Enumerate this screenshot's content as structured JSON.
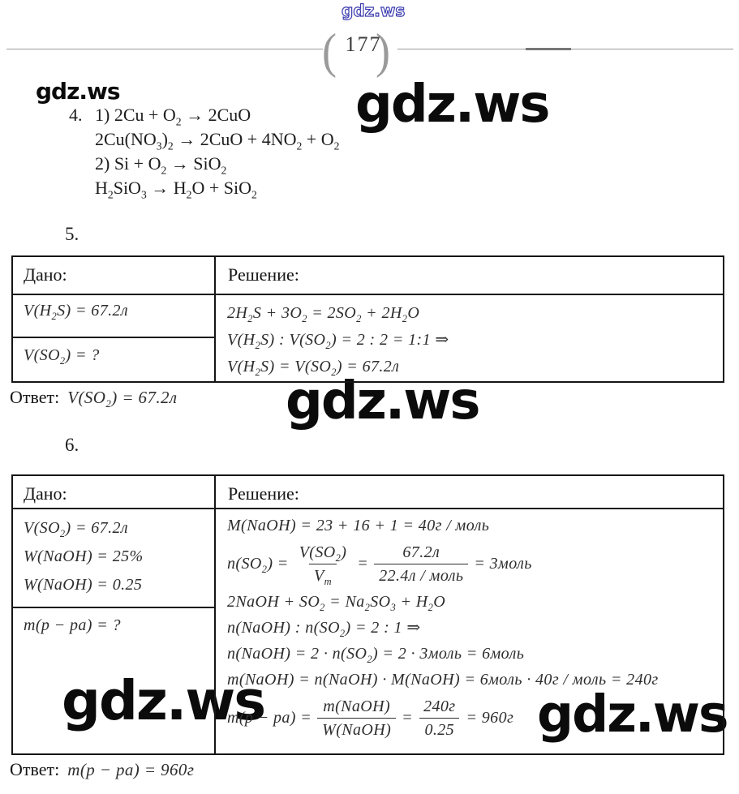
{
  "page": {
    "number": "177"
  },
  "watermarks": {
    "tiny_top": "gdz.ws",
    "top_left": "gdz.ws",
    "top_right": "gdz.ws",
    "middle": "gdz.ws",
    "bottom_left": "gdz.ws",
    "bottom_right": "gdz.ws"
  },
  "colors": {
    "table_border": "#151515",
    "header_rule": "#9a9a9a",
    "watermark": "#0b0b0b",
    "tiny_watermark_outline": "#3b3bb0"
  },
  "item4": {
    "number": "4.",
    "equations": [
      "1) 2Cu + O₂ → 2CuO",
      "2Cu(NO₃)₂ → 2CuO + 4NO₂ + O₂",
      "2) Si + O₂ → SiO₂",
      "H₂SiO₃ → H₂O + SiO₂"
    ]
  },
  "item5": {
    "number": "5.",
    "table": {
      "given_header": "Дано:",
      "solution_header": "Решение:",
      "given": [
        "V(H₂S) = 67.2л"
      ],
      "find": "V(SO₂) = ?",
      "solution": [
        "2H₂S + 3O₂ = 2SO₂ + 2H₂O",
        "V(H₂S) : V(SO₂) = 2 : 2 = 1:1 ⇒",
        "V(H₂S) = V(SO₂) = 67.2л"
      ]
    },
    "answer_label": "Ответ:",
    "answer": "V(SO₂) = 67.2л"
  },
  "item6": {
    "number": "6.",
    "table": {
      "given_header": "Дано:",
      "solution_header": "Решение:",
      "given": [
        "V(SO₂) = 67.2л",
        "W(NaOH) = 25%",
        "W(NaOH) = 0.25"
      ],
      "find": "m(p − pa) = ?",
      "line1": "M(NaOH) = 23 + 16 + 1 = 40г / моль",
      "frac1": {
        "lhs": "n(SO₂) =",
        "num1": "V(SO₂)",
        "den1": "Vₘ",
        "eq": "=",
        "num2": "67.2л",
        "den2": "22.4л / моль",
        "rhs": "= 3моль"
      },
      "line3": "2NaOH + SO₂ = Na₂SO₃ + H₂O",
      "line4": "n(NaOH) : n(SO₂) = 2 : 1 ⇒",
      "line5": "n(NaOH) = 2 · n(SO₂) = 2 · 3моль = 6моль",
      "line6": "m(NaOH) = n(NaOH) · M(NaOH) = 6моль · 40г / моль = 240г",
      "frac2": {
        "lhs": "m(p − pa) =",
        "num1": "m(NaOH)",
        "den1": "W(NaOH)",
        "eq": "=",
        "num2": "240г",
        "den2": "0.25",
        "rhs": "= 960г"
      }
    },
    "answer_label": "Ответ:",
    "answer": "m(p − pa) = 960г"
  }
}
